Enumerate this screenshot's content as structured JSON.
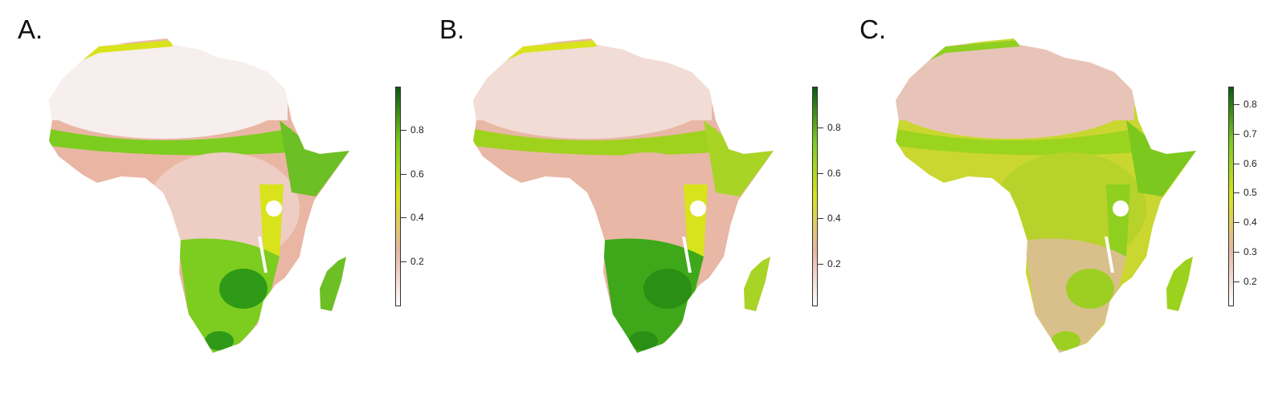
{
  "panels": [
    {
      "label": "A.",
      "legend": {
        "ticks": [
          "0.8",
          "0.6",
          "0.4",
          "0.2"
        ],
        "tick_values": [
          0.8,
          0.6,
          0.4,
          0.2
        ],
        "range": [
          0.0,
          1.0
        ]
      },
      "pattern": "high-south-sahel"
    },
    {
      "label": "B.",
      "legend": {
        "ticks": [
          "0.8",
          "0.6",
          "0.4",
          "0.2"
        ],
        "tick_values": [
          0.8,
          0.6,
          0.4,
          0.2
        ],
        "range": [
          0.02,
          0.98
        ]
      },
      "pattern": "high-south-moderate"
    },
    {
      "label": "C.",
      "legend": {
        "ticks": [
          "0.8",
          "0.7",
          "0.6",
          "0.5",
          "0.4",
          "0.3",
          "0.2"
        ],
        "tick_values": [
          0.8,
          0.7,
          0.6,
          0.5,
          0.4,
          0.3,
          0.2
        ],
        "range": [
          0.12,
          0.86
        ]
      },
      "pattern": "widespread"
    }
  ],
  "colors": {
    "scale_low": "#ffffff",
    "scale_pink": "#e8b7a5",
    "scale_yellow": "#d8e31b",
    "scale_green": "#7ccd1f",
    "scale_high": "#0a5a10"
  }
}
